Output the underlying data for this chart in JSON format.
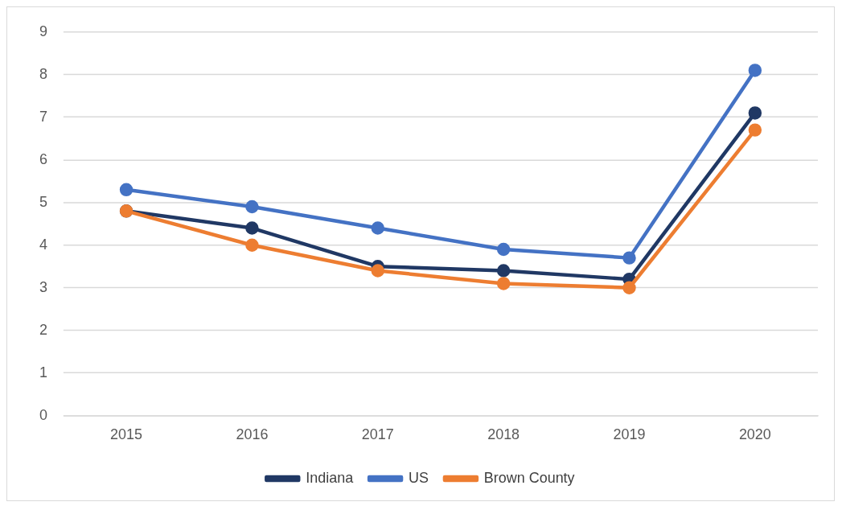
{
  "chart_data": {
    "type": "line",
    "categories": [
      "2015",
      "2016",
      "2017",
      "2018",
      "2019",
      "2020"
    ],
    "series": [
      {
        "name": "Indiana",
        "color": "#203864",
        "values": [
          4.8,
          4.4,
          3.5,
          3.4,
          3.2,
          7.1
        ]
      },
      {
        "name": "US",
        "color": "#4472c4",
        "values": [
          5.3,
          4.9,
          4.4,
          3.9,
          3.7,
          8.1
        ]
      },
      {
        "name": "Brown County",
        "color": "#ed7d31",
        "values": [
          4.8,
          4.0,
          3.4,
          3.1,
          3.0,
          6.7
        ]
      }
    ],
    "ylim": [
      0,
      9
    ],
    "yticks": [
      0,
      1,
      2,
      3,
      4,
      5,
      6,
      7,
      8,
      9
    ],
    "grid": "y",
    "legend": "bottom",
    "marker": "circle",
    "line_style": "solid"
  }
}
